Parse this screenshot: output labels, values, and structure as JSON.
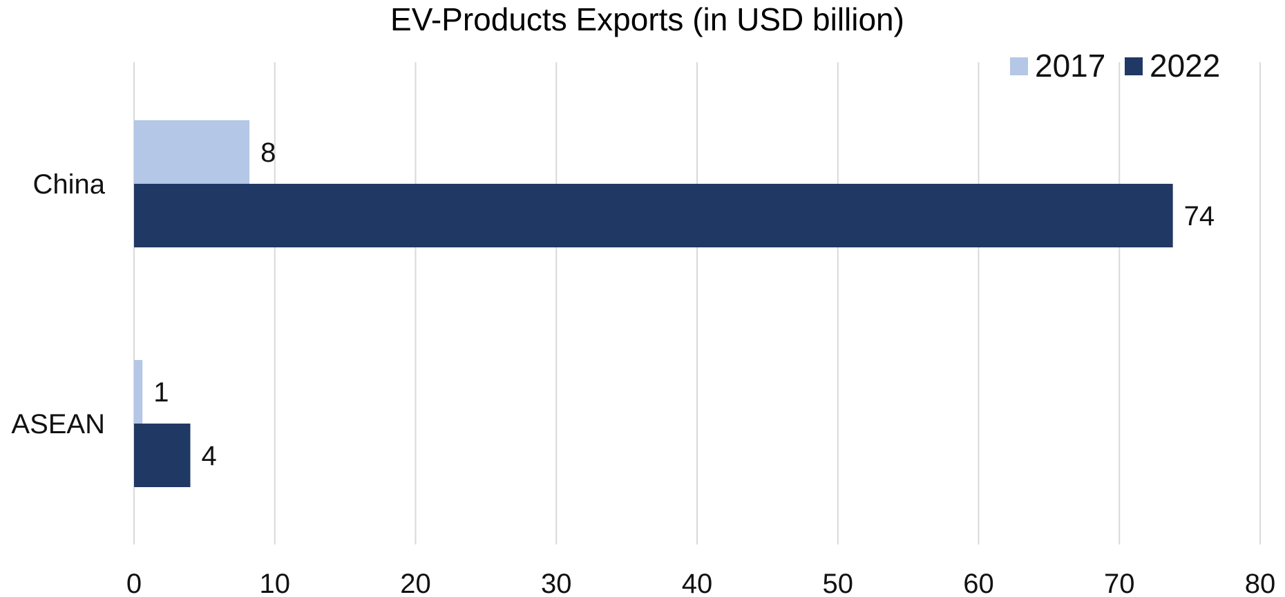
{
  "chart_data": {
    "type": "bar",
    "orientation": "horizontal",
    "title": "EV-Products Exports (in USD billion)",
    "categories": [
      "China",
      "ASEAN"
    ],
    "series": [
      {
        "name": "2017",
        "color": "#b4c7e7",
        "values": [
          8.2,
          0.6
        ],
        "labels": [
          "8",
          "1"
        ]
      },
      {
        "name": "2022",
        "color": "#203864",
        "values": [
          73.8,
          4.0
        ],
        "labels": [
          "74",
          "4"
        ]
      }
    ],
    "xlim": [
      0,
      80
    ],
    "xticks": [
      0,
      10,
      20,
      30,
      40,
      50,
      60,
      70,
      80
    ],
    "grid": true,
    "legend_position": "top-right"
  }
}
